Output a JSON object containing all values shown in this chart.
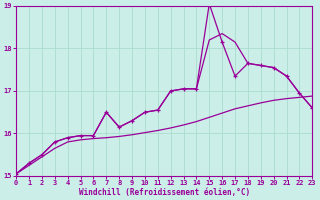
{
  "xlabel": "Windchill (Refroidissement éolien,°C)",
  "bg_color": "#cceee8",
  "line_color": "#990099",
  "grid_color": "#aaddcc",
  "x_min": 0,
  "x_max": 23,
  "y_min": 15,
  "y_max": 19,
  "x_ticks": [
    0,
    1,
    2,
    3,
    4,
    5,
    6,
    7,
    8,
    9,
    10,
    11,
    12,
    13,
    14,
    15,
    16,
    17,
    18,
    19,
    20,
    21,
    22,
    23
  ],
  "y_ticks": [
    15,
    16,
    17,
    18,
    19
  ],
  "hourly_x": [
    0,
    1,
    2,
    3,
    4,
    5,
    6,
    7,
    8,
    9,
    10,
    11,
    12,
    13,
    14,
    15,
    16,
    17,
    18,
    19,
    20,
    21,
    22,
    23
  ],
  "hourly_y": [
    15.05,
    15.3,
    15.5,
    15.8,
    15.9,
    15.95,
    15.95,
    16.5,
    16.15,
    16.3,
    16.5,
    16.55,
    17.0,
    17.05,
    17.05,
    19.05,
    18.15,
    17.35,
    17.65,
    17.6,
    17.55,
    17.35,
    16.95,
    16.6
  ],
  "upper_x": [
    0,
    1,
    2,
    3,
    4,
    5,
    6,
    7,
    8,
    9,
    10,
    11,
    12,
    13,
    14,
    15,
    16,
    17,
    18,
    19,
    20,
    21,
    22,
    23
  ],
  "upper_y": [
    15.05,
    15.3,
    15.5,
    15.8,
    15.9,
    15.95,
    15.95,
    16.5,
    16.15,
    16.3,
    16.5,
    16.55,
    17.0,
    17.05,
    17.05,
    18.2,
    18.35,
    18.15,
    17.65,
    17.6,
    17.55,
    17.35,
    16.95,
    16.6
  ],
  "lower_x": [
    0,
    1,
    2,
    3,
    4,
    5,
    6,
    7,
    8,
    9,
    10,
    11,
    12,
    13,
    14,
    15,
    16,
    17,
    18,
    19,
    20,
    21,
    22,
    23
  ],
  "lower_y": [
    15.05,
    15.25,
    15.45,
    15.65,
    15.8,
    15.85,
    15.88,
    15.9,
    15.93,
    15.97,
    16.02,
    16.07,
    16.13,
    16.2,
    16.28,
    16.38,
    16.48,
    16.58,
    16.65,
    16.72,
    16.78,
    16.82,
    16.85,
    16.88
  ]
}
